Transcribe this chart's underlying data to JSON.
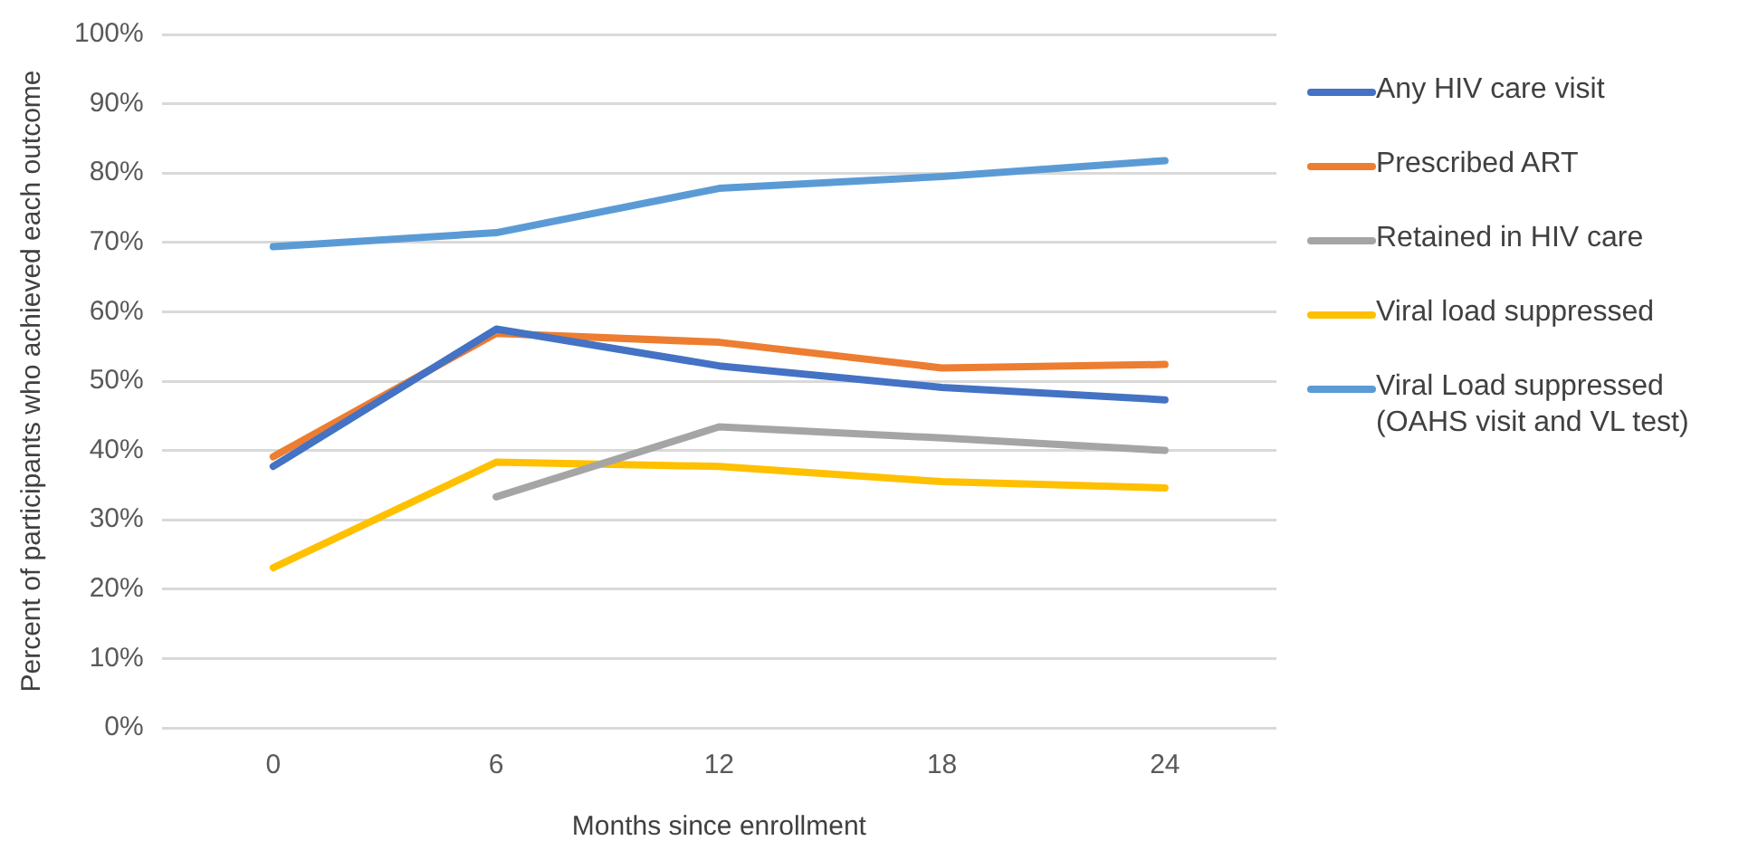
{
  "chart_data": {
    "type": "line",
    "xlabel": "Months since enrollment",
    "ylabel": "Percent of participants who achieved each outcome",
    "categories": [
      "0",
      "6",
      "12",
      "18",
      "24"
    ],
    "ylim": [
      0,
      100
    ],
    "yticks": [
      {
        "value": 0,
        "label": "0%"
      },
      {
        "value": 10,
        "label": "10%"
      },
      {
        "value": 20,
        "label": "20%"
      },
      {
        "value": 30,
        "label": "30%"
      },
      {
        "value": 40,
        "label": "40%"
      },
      {
        "value": 50,
        "label": "50%"
      },
      {
        "value": 60,
        "label": "60%"
      },
      {
        "value": 70,
        "label": "70%"
      },
      {
        "value": 80,
        "label": "80%"
      },
      {
        "value": 90,
        "label": "90%"
      },
      {
        "value": 100,
        "label": "100%"
      }
    ],
    "grid": "y",
    "legend": "right",
    "marker": "none",
    "line_style": "solid",
    "series": [
      {
        "name": "Any HIV care visit",
        "color": "#4472c4",
        "values": [
          37.7,
          57.5,
          52.2,
          49.1,
          47.3
        ]
      },
      {
        "name": "Prescribed ART",
        "color": "#ed7d31",
        "values": [
          39.1,
          56.9,
          55.6,
          51.9,
          52.4
        ]
      },
      {
        "name": "Retained in HIV care",
        "color": "#a5a5a5",
        "values": [
          null,
          33.3,
          43.4,
          41.8,
          40.0
        ]
      },
      {
        "name": "Viral load suppressed",
        "color": "#ffc000",
        "values": [
          23.1,
          38.3,
          37.7,
          35.5,
          34.6
        ]
      },
      {
        "name": "Viral Load suppressed (OAHS visit and VL test)",
        "color": "#5b9bd5",
        "values": [
          69.4,
          71.4,
          77.8,
          79.5,
          81.8
        ]
      }
    ]
  }
}
